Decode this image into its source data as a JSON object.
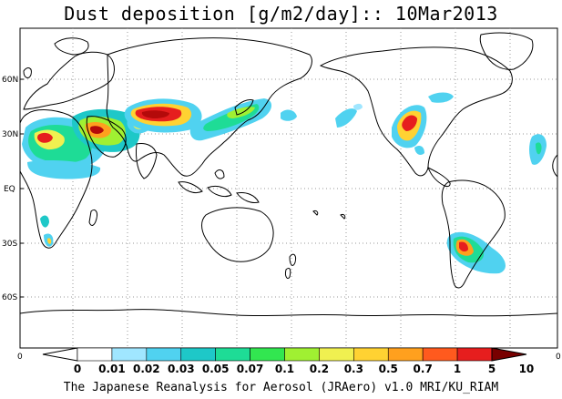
{
  "title": "Dust deposition [g/m2/day]:: 10Mar2013",
  "credit": "The Japanese Reanalysis for Aerosol (JRAero) v1.0 MRI/KU_RIAM",
  "axes": {
    "lat_labels": [
      "60N",
      "30N",
      "EQ",
      "30S",
      "60S"
    ],
    "corner_left": "0",
    "corner_right": "0"
  },
  "colorbar": {
    "labels": [
      "0",
      "0.01",
      "0.02",
      "0.03",
      "0.05",
      "0.07",
      "0.1",
      "0.2",
      "0.3",
      "0.5",
      "0.7",
      "1",
      "5",
      "10"
    ],
    "colors": [
      "#ffffff",
      "#a0e6ff",
      "#50d2f0",
      "#1ec8c8",
      "#1edc96",
      "#32e650",
      "#a0f032",
      "#f0f050",
      "#ffd232",
      "#ffa01e",
      "#ff5a1e",
      "#e61e1e",
      "#b40a0a",
      "#780000"
    ]
  }
}
